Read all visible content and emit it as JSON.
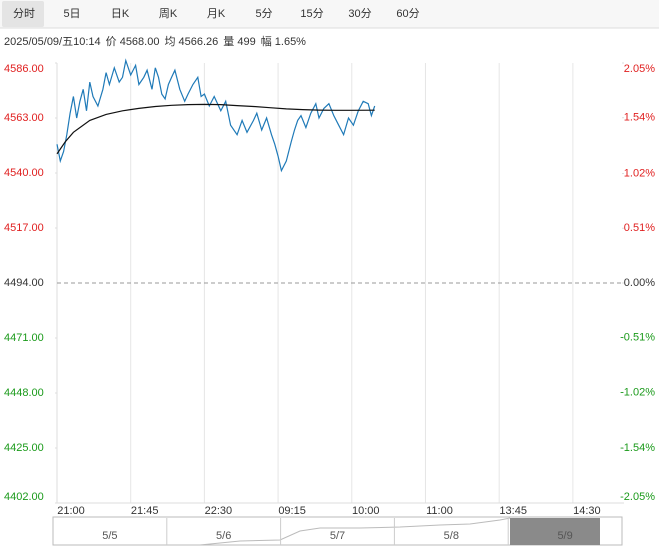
{
  "tabs": [
    "分时",
    "5日",
    "日K",
    "周K",
    "月K",
    "5分",
    "15分",
    "30分",
    "60分"
  ],
  "info": [
    "2025/05/09/五10:14",
    "价 4568.00",
    "均 4566.26",
    "量 499",
    "幅 1.65%"
  ],
  "navigator": [
    "5/5",
    "5/6",
    "5/7",
    "5/8",
    "5/9"
  ],
  "chart_data": {
    "type": "line",
    "xlim": [
      0,
      345
    ],
    "xticks": [
      {
        "value": 0,
        "label": "21:00"
      },
      {
        "value": 45,
        "label": "21:45"
      },
      {
        "value": 90,
        "label": "22:30"
      },
      {
        "value": 135,
        "label": "09:15"
      },
      {
        "value": 180,
        "label": "10:00"
      },
      {
        "value": 225,
        "label": "11:00"
      },
      {
        "value": 270,
        "label": "13:45"
      },
      {
        "value": 315,
        "label": "14:30"
      }
    ],
    "ylim": [
      4402,
      4586
    ],
    "yticks": [
      {
        "value": 4586,
        "label": "4586.00"
      },
      {
        "value": 4563,
        "label": "4563.00"
      },
      {
        "value": 4540,
        "label": "4540.00"
      },
      {
        "value": 4517,
        "label": "4517.00"
      },
      {
        "value": 4494,
        "label": "4494.00"
      },
      {
        "value": 4471,
        "label": "4471.00"
      },
      {
        "value": 4448,
        "label": "4448.00"
      },
      {
        "value": 4425,
        "label": "4425.00"
      },
      {
        "value": 4402,
        "label": "4402.00"
      }
    ],
    "y2lim": [
      -2.05,
      2.05
    ],
    "y2ticks": [
      {
        "value": 2.05,
        "label": "2.05%"
      },
      {
        "value": 1.54,
        "label": "1.54%"
      },
      {
        "value": 1.02,
        "label": "1.02%"
      },
      {
        "value": 0.51,
        "label": "0.51%"
      },
      {
        "value": 0,
        "label": "0.00%"
      },
      {
        "value": -0.51,
        "label": "-0.51%"
      },
      {
        "value": -1.02,
        "label": "-1.02%"
      },
      {
        "value": -1.54,
        "label": "-1.54%"
      },
      {
        "value": -2.05,
        "label": "-2.05%"
      }
    ],
    "grid": "x",
    "up_color": "#e02020",
    "down_color": "#1a9a1a",
    "series": [
      {
        "color": "#1f7ab8",
        "x": [
          0,
          2,
          4,
          6,
          8,
          10,
          12,
          14,
          16,
          18,
          20,
          22,
          25,
          28,
          30,
          32,
          35,
          38,
          40,
          42,
          45,
          48,
          50,
          53,
          55,
          58,
          60,
          62,
          64,
          66,
          68,
          70,
          72,
          75,
          78,
          80,
          83,
          86,
          88,
          90,
          93,
          96,
          100,
          103,
          106,
          110,
          113,
          116,
          120,
          122,
          125,
          128,
          131,
          133,
          135,
          137,
          140,
          143,
          145,
          147,
          149,
          152,
          155,
          158,
          160,
          163,
          166,
          169,
          172,
          175,
          178,
          181,
          184,
          187,
          190,
          192,
          194
        ],
        "values": [
          4552,
          4545,
          4549,
          4556,
          4565,
          4572,
          4563,
          4570,
          4575,
          4566,
          4578,
          4572,
          4568,
          4575,
          4582,
          4577,
          4584,
          4578,
          4580,
          4587,
          4581,
          4585,
          4577,
          4580,
          4583,
          4575,
          4584,
          4580,
          4573,
          4571,
          4577,
          4580,
          4583,
          4575,
          4570,
          4573,
          4577,
          4580,
          4572,
          4573,
          4568,
          4572,
          4566,
          4570,
          4560,
          4556,
          4562,
          4557,
          4562,
          4565,
          4558,
          4563,
          4556,
          4552,
          4547,
          4541,
          4545,
          4553,
          4558,
          4562,
          4564,
          4559,
          4565,
          4569,
          4563,
          4567,
          4569,
          4564,
          4560,
          4556,
          4563,
          4560,
          4566,
          4570,
          4569,
          4564,
          4568
        ]
      },
      {
        "color": "#111111",
        "x": [
          0,
          5,
          10,
          20,
          30,
          40,
          50,
          60,
          70,
          80,
          90,
          100,
          110,
          120,
          130,
          140,
          150,
          160,
          170,
          180,
          194
        ],
        "values": [
          4548,
          4553,
          4557,
          4562,
          4564.5,
          4566,
          4567,
          4567.8,
          4568.3,
          4568.6,
          4568.7,
          4568.6,
          4568.2,
          4567.8,
          4567.3,
          4566.8,
          4566.5,
          4566.3,
          4566.2,
          4566.2,
          4566.26
        ]
      }
    ]
  }
}
